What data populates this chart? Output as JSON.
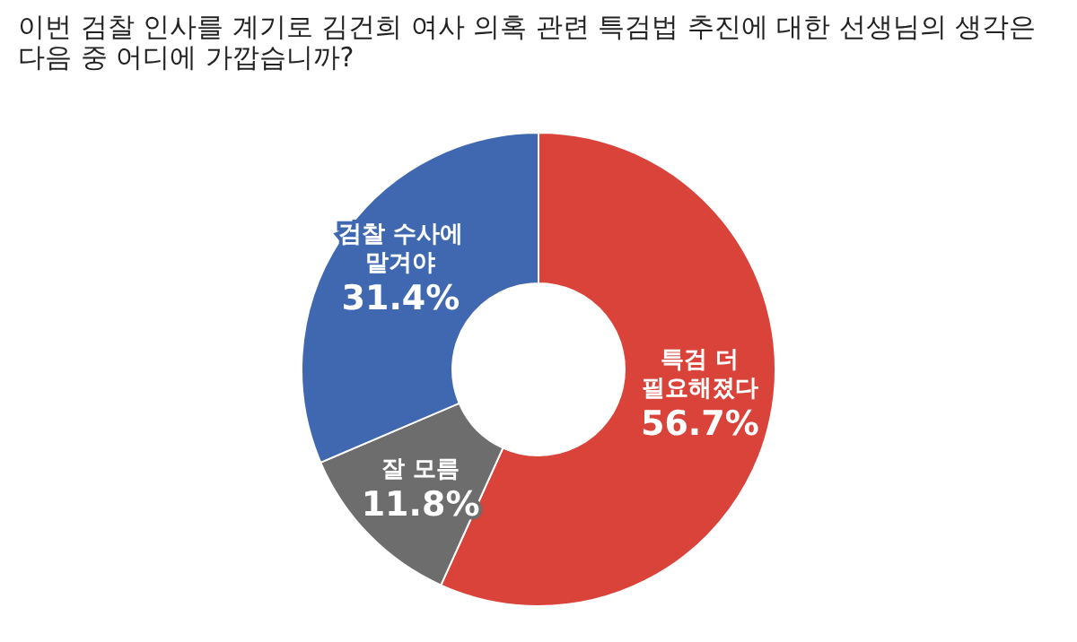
{
  "chart_data": {
    "type": "donut",
    "title": "이번 검찰 인사를 계기로 김건희 여사 의혹 관련 특검법 추진에 대한 선생님의 생각은 다음 중 어디에 가깝습니까?",
    "categories": [
      "특검 더 필요해졌다",
      "잘 모름",
      "검찰 수사에 맡겨야"
    ],
    "values": [
      56.7,
      11.8,
      31.4
    ],
    "colors": [
      "#d9433a",
      "#6d6d6d",
      "#3f68b1"
    ],
    "value_labels": [
      "56.7%",
      "11.8%",
      "31.4%"
    ],
    "legend": false
  }
}
